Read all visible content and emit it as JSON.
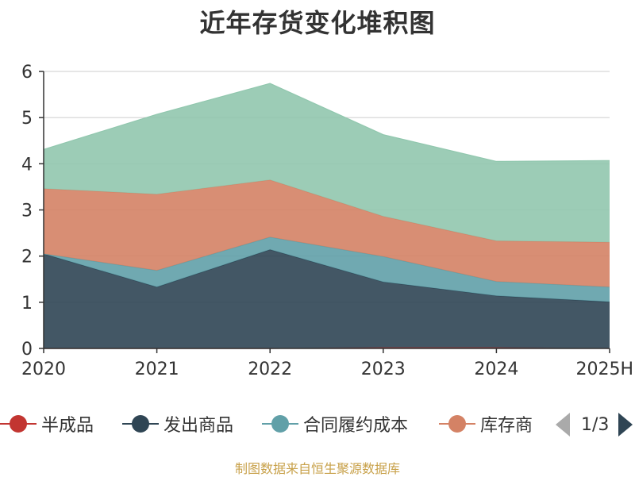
{
  "title": "近年存货变化堆积图",
  "source": "制图数据来自恒生聚源数据库",
  "pager": {
    "text": "1/3"
  },
  "legend": [
    {
      "name": "半成品",
      "color": "#c23531"
    },
    {
      "name": "发出商品",
      "color": "#2f4554"
    },
    {
      "name": "合同履约成本",
      "color": "#61a0a8"
    },
    {
      "name": "库存商",
      "color": "#d48265"
    }
  ],
  "chart_data": {
    "type": "area",
    "stacked": true,
    "categories": [
      "2020",
      "2021",
      "2022",
      "2023",
      "2024",
      "2025H"
    ],
    "ylim": [
      0,
      6
    ],
    "yticks": [
      0,
      1,
      2,
      3,
      4,
      5,
      6
    ],
    "grid": true,
    "legend_position": "bottom",
    "series": [
      {
        "name": "半成品",
        "color": "#c23531",
        "values": [
          0.0,
          0.0,
          0.0,
          0.02,
          0.02,
          0.0
        ]
      },
      {
        "name": "发出商品",
        "color": "#2f4554",
        "values": [
          2.05,
          1.33,
          2.14,
          1.42,
          1.12,
          1.01
        ]
      },
      {
        "name": "合同履约成本",
        "color": "#61a0a8",
        "values": [
          0.0,
          0.36,
          0.27,
          0.55,
          0.31,
          0.32
        ]
      },
      {
        "name": "库存商",
        "color": "#d48265",
        "values": [
          1.41,
          1.65,
          1.24,
          0.87,
          0.88,
          0.97
        ]
      },
      {
        "color": "#91c7ae",
        "values": [
          0.85,
          1.73,
          2.09,
          1.77,
          1.72,
          1.77
        ]
      }
    ]
  }
}
